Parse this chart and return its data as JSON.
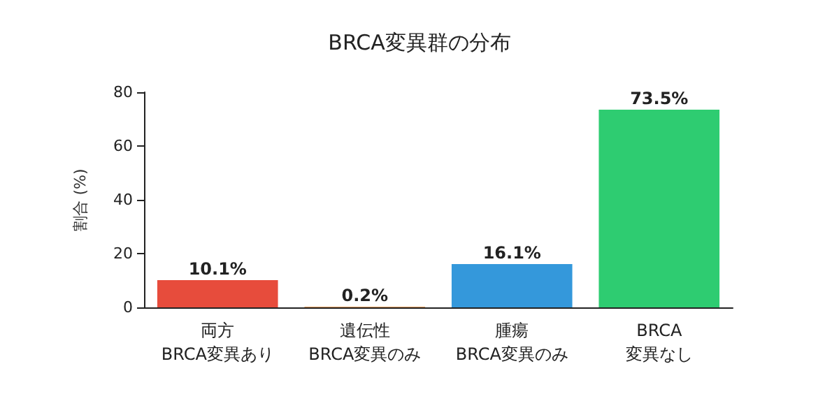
{
  "chart_data": {
    "type": "bar",
    "title": "BRCA変異群の分布",
    "ylabel": "割合 (%)",
    "categories": [
      "両方\nBRCA変異あり",
      "遺伝性\nBRCA変異のみ",
      "腫瘍\nBRCA変異のみ",
      "BRCA\n変異なし"
    ],
    "values": [
      10.1,
      0.2,
      16.1,
      73.5
    ],
    "colors": [
      "#e74c3c",
      "#e67e22",
      "#3498db",
      "#2ecc71"
    ],
    "value_labels": [
      "10.1%",
      "0.2%",
      "16.1%",
      "73.5%"
    ],
    "ylim": [
      0,
      80
    ],
    "yticks": [
      0,
      20,
      40,
      60,
      80
    ],
    "grid": false
  }
}
